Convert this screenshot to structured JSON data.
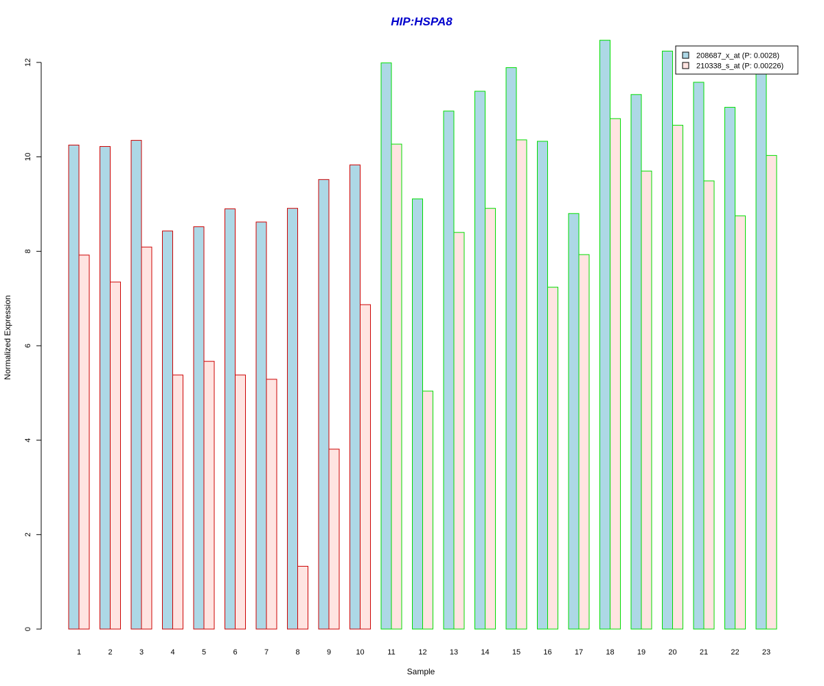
{
  "chart_data": {
    "type": "bar",
    "title": "HIP:HSPA8",
    "xlabel": "Sample",
    "ylabel": "Normalized Expression",
    "categories": [
      "1",
      "2",
      "3",
      "4",
      "5",
      "6",
      "7",
      "8",
      "9",
      "10",
      "11",
      "12",
      "13",
      "14",
      "15",
      "16",
      "17",
      "18",
      "19",
      "20",
      "21",
      "22",
      "23"
    ],
    "ylim": [
      0,
      12
    ],
    "yticks": [
      "0",
      "2",
      "4",
      "6",
      "8",
      "10",
      "12"
    ],
    "grid": false,
    "legend_position": "top-right",
    "series": [
      {
        "name": "208687_x_at (P: 0.0028)",
        "fill": "#add8e6",
        "values": [
          10.25,
          10.22,
          10.35,
          8.43,
          8.52,
          8.9,
          8.62,
          8.91,
          9.52,
          9.83,
          11.99,
          9.11,
          10.97,
          11.39,
          11.89,
          10.33,
          8.8,
          12.47,
          11.32,
          12.24,
          11.58,
          11.05,
          11.78
        ]
      },
      {
        "name": "210338_s_at (P: 0.00226)",
        "fill": "#ffe4e1",
        "values": [
          7.92,
          7.35,
          8.09,
          5.38,
          5.67,
          5.38,
          5.29,
          1.33,
          3.81,
          6.87,
          10.27,
          5.04,
          8.4,
          8.91,
          10.36,
          7.24,
          7.93,
          10.81,
          9.7,
          10.67,
          9.49,
          8.75,
          10.03
        ]
      }
    ],
    "border_colors": [
      "#cc0000",
      "#cc0000",
      "#cc0000",
      "#cc0000",
      "#cc0000",
      "#cc0000",
      "#cc0000",
      "#cc0000",
      "#cc0000",
      "#cc0000",
      "#00dd00",
      "#00dd00",
      "#00dd00",
      "#00dd00",
      "#00dd00",
      "#00dd00",
      "#00dd00",
      "#00dd00",
      "#00dd00",
      "#00dd00",
      "#00dd00",
      "#00dd00",
      "#00dd00"
    ],
    "title_color": "#0000cc"
  }
}
